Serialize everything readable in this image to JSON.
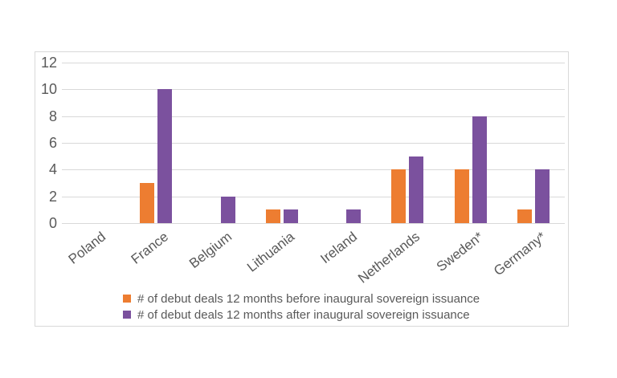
{
  "chart_data": {
    "type": "bar",
    "title": "",
    "xlabel": "",
    "ylabel": "",
    "categories": [
      "Poland",
      "France",
      "Belgium",
      "Lithuania",
      "Ireland",
      "Netherlands",
      "Sweden*",
      "Germany*"
    ],
    "series": [
      {
        "name": "# of debut deals 12 months before inaugural sovereign issuance",
        "color": "#ED7D31",
        "values": [
          0,
          3,
          0,
          1,
          0,
          4,
          4,
          1
        ]
      },
      {
        "name": "# of debut deals 12 months after inaugural sovereign issuance",
        "color": "#7B519E",
        "values": [
          0,
          10,
          2,
          1,
          1,
          5,
          8,
          4
        ]
      }
    ],
    "y_ticks": [
      0,
      2,
      4,
      6,
      8,
      10,
      12
    ],
    "ylim": [
      0,
      12
    ],
    "grid": true,
    "gridline_color": "#D9D9D9",
    "axis_text_color": "#595959",
    "legend_position": "bottom"
  }
}
